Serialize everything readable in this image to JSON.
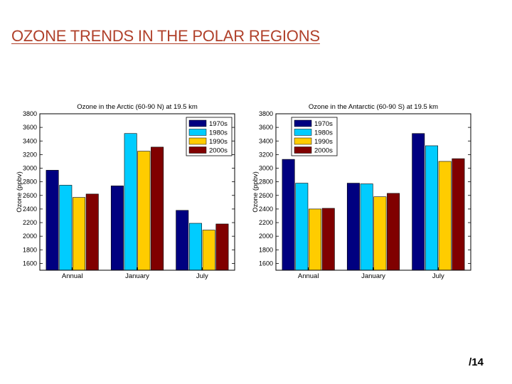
{
  "slide": {
    "title": "OZONE TRENDS IN THE POLAR REGIONS",
    "page_number": "/14"
  },
  "colors": {
    "title": "#b0402a",
    "series": [
      "#000080",
      "#00ccff",
      "#ffcc00",
      "#800000"
    ]
  },
  "chart_data": [
    {
      "type": "bar",
      "title": "Ozone in the Arctic (60-90 N) at 19.5 km",
      "xlabel": "",
      "ylabel": "Ozone (ppbv)",
      "categories": [
        "Annual",
        "January",
        "July"
      ],
      "ylim": [
        1500,
        3800
      ],
      "yticks": [
        1600,
        1800,
        2000,
        2200,
        2400,
        2600,
        2800,
        3000,
        3200,
        3400,
        3600,
        3800
      ],
      "legend_position": "top-right",
      "series": [
        {
          "name": "1970s",
          "values": [
            2970,
            2740,
            2380
          ]
        },
        {
          "name": "1980s",
          "values": [
            2750,
            3510,
            2190
          ]
        },
        {
          "name": "1990s",
          "values": [
            2570,
            3250,
            2090
          ]
        },
        {
          "name": "2000s",
          "values": [
            2620,
            3310,
            2180
          ]
        }
      ]
    },
    {
      "type": "bar",
      "title": "Ozone in the Antarctic (60-90 S) at 19.5 km",
      "xlabel": "",
      "ylabel": "Ozone (ppbv)",
      "categories": [
        "Annual",
        "January",
        "July"
      ],
      "ylim": [
        1500,
        3800
      ],
      "yticks": [
        1600,
        1800,
        2000,
        2200,
        2400,
        2600,
        2800,
        3000,
        3200,
        3400,
        3600,
        3800
      ],
      "legend_position": "top-left",
      "series": [
        {
          "name": "1970s",
          "values": [
            3130,
            2780,
            3510
          ]
        },
        {
          "name": "1980s",
          "values": [
            2780,
            2770,
            3330
          ]
        },
        {
          "name": "1990s",
          "values": [
            2400,
            2580,
            3100
          ]
        },
        {
          "name": "2000s",
          "values": [
            2410,
            2630,
            3140
          ]
        }
      ]
    }
  ]
}
